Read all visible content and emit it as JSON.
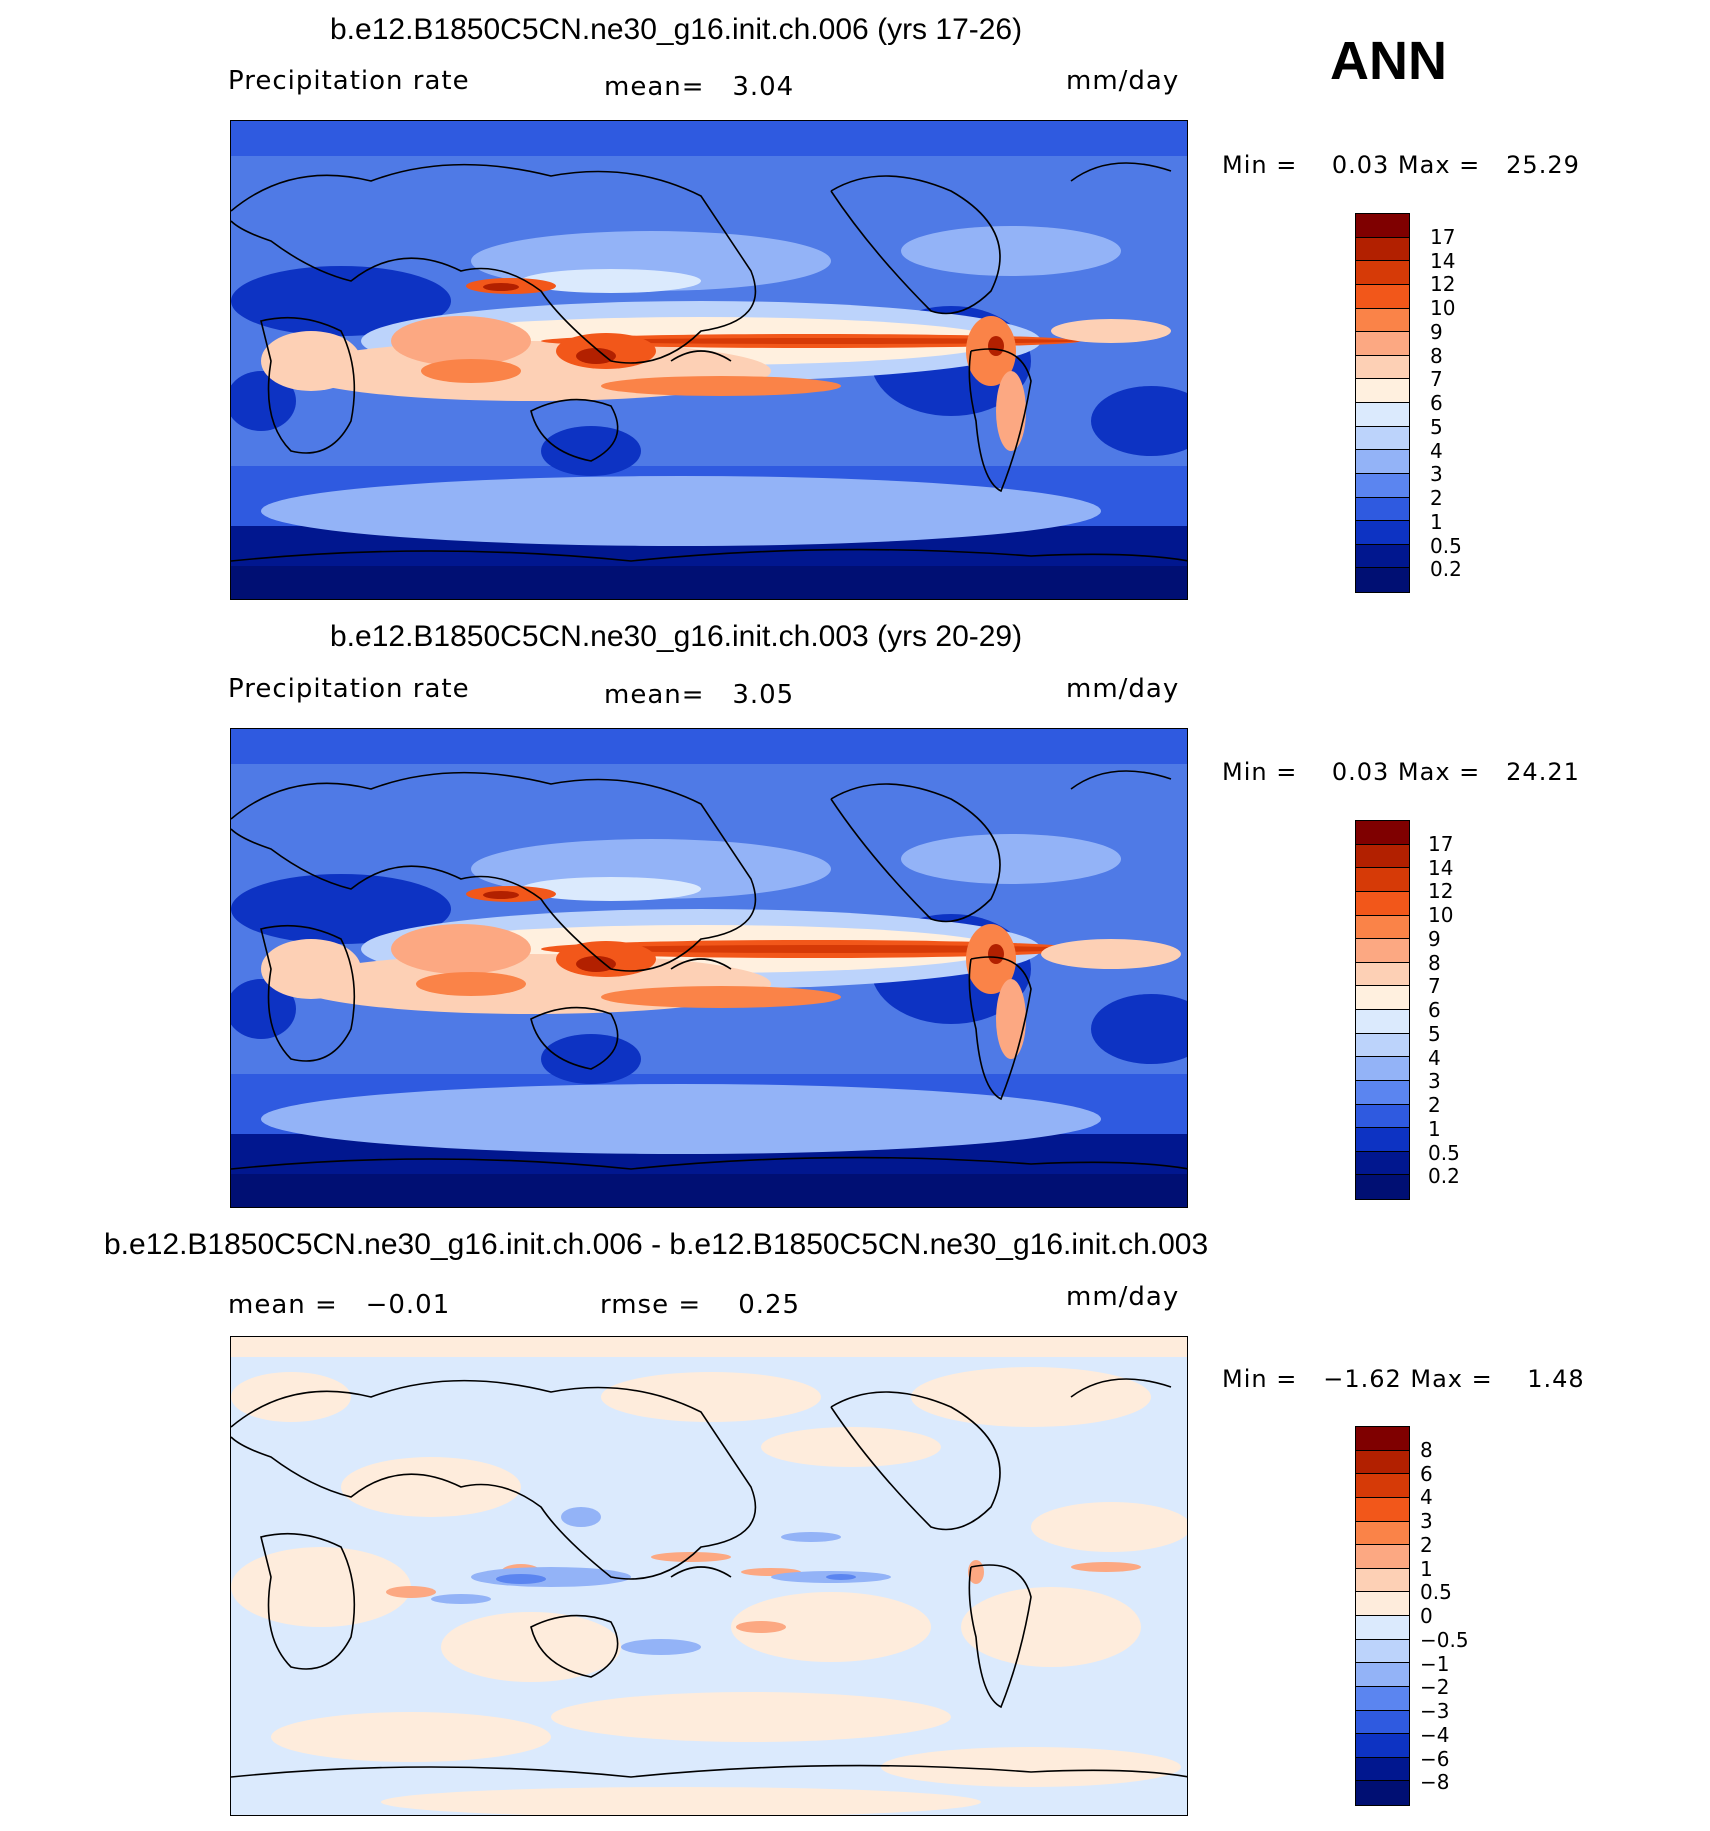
{
  "header": {
    "season": "ANN"
  },
  "panels": [
    {
      "title": "b.e12.B1850C5CN.ne30_g16.init.ch.006 (yrs 17-26)",
      "variable": "Precipitation rate",
      "stat_text": "mean=   3.04",
      "units": "mm/day",
      "minmax": "Min =    0.03 Max =   25.29",
      "colorbar": {
        "labels": [
          "17",
          "14",
          "12",
          "10",
          "9",
          "8",
          "7",
          "6",
          "5",
          "4",
          "3",
          "2",
          "1",
          "0.5",
          "0.2"
        ],
        "colors": [
          "#7f0000",
          "#b22000",
          "#d63a07",
          "#f2571a",
          "#fa8348",
          "#fca882",
          "#fdd0b5",
          "#fff0df",
          "#dbeafd",
          "#bcd3fb",
          "#93b3f7",
          "#5b85f0",
          "#2f5ae0",
          "#0d33c3",
          "#01178f",
          "#000f73"
        ]
      }
    },
    {
      "title": "b.e12.B1850C5CN.ne30_g16.init.ch.003 (yrs 20-29)",
      "variable": "Precipitation rate",
      "stat_text": "mean=   3.05",
      "units": "mm/day",
      "minmax": "Min =    0.03 Max =   24.21",
      "colorbar": {
        "labels": [
          "17",
          "14",
          "12",
          "10",
          "9",
          "8",
          "7",
          "6",
          "5",
          "4",
          "3",
          "2",
          "1",
          "0.5",
          "0.2"
        ],
        "colors": [
          "#7f0000",
          "#b22000",
          "#d63a07",
          "#f2571a",
          "#fa8348",
          "#fca882",
          "#fdd0b5",
          "#fff0df",
          "#dbeafd",
          "#bcd3fb",
          "#93b3f7",
          "#5b85f0",
          "#2f5ae0",
          "#0d33c3",
          "#01178f",
          "#000f73"
        ]
      }
    },
    {
      "title": "b.e12.B1850C5CN.ne30_g16.init.ch.006 - b.e12.B1850C5CN.ne30_g16.init.ch.003",
      "stat_mean": "mean =   −0.01",
      "stat_rmse": "rmse =    0.25",
      "units": "mm/day",
      "minmax": "Min =   −1.62 Max =    1.48",
      "colorbar": {
        "labels": [
          "8",
          "6",
          "4",
          "3",
          "2",
          "1",
          "0.5",
          "0",
          "−0.5",
          "−1",
          "−2",
          "−3",
          "−4",
          "−6",
          "−8"
        ],
        "colors": [
          "#7f0000",
          "#b22000",
          "#d63a07",
          "#f2571a",
          "#fa8348",
          "#fca882",
          "#fdd0b5",
          "#feecdc",
          "#dbeafd",
          "#bcd3fb",
          "#93b3f7",
          "#5b85f0",
          "#2f5ae0",
          "#0d33c3",
          "#01178f",
          "#000f73"
        ]
      }
    }
  ]
}
